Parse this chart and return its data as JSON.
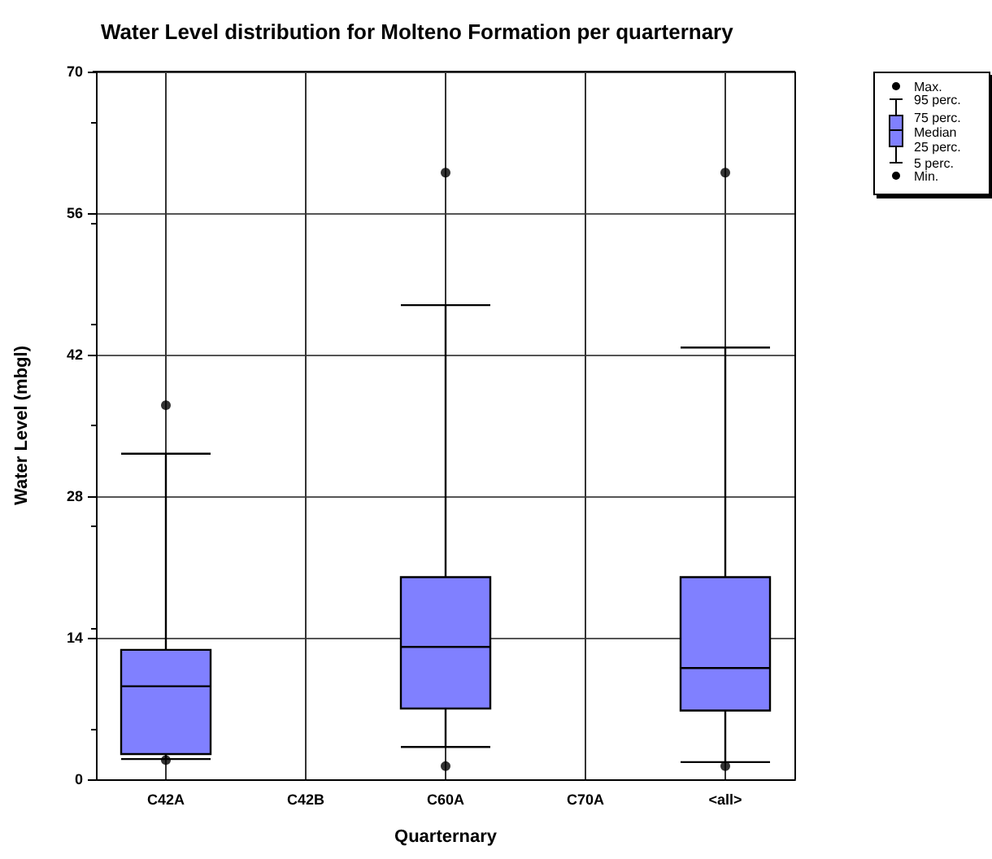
{
  "chart_data": {
    "type": "box",
    "title": "Water Level distribution for Molteno Formation per quarternary",
    "xlabel": "Quarternary",
    "ylabel": "Water Level (mbgl)",
    "categories": [
      "C42A",
      "C42B",
      "C60A",
      "C70A",
      "<all>"
    ],
    "boxes": [
      {
        "low": 2.0,
        "q1": 2.5,
        "median": 9.2,
        "q3": 12.8,
        "high": 32.2,
        "outliers": [
          1.9,
          37
        ]
      },
      null,
      {
        "low": 3.2,
        "q1": 7.0,
        "median": 13.1,
        "q3": 20.0,
        "high": 46.9,
        "outliers": [
          1.3,
          60
        ]
      },
      null,
      {
        "low": 1.7,
        "q1": 6.8,
        "median": 11.0,
        "q3": 20.0,
        "high": 42.7,
        "outliers": [
          1.3,
          60
        ]
      }
    ],
    "color": "#8080ff",
    "ylim": [
      0,
      70
    ],
    "yticks": [
      0,
      14,
      28,
      42,
      56,
      70
    ],
    "grid": true,
    "annotations": [
      "Max.",
      "95 perc.",
      "75 perc.",
      "Median",
      "25 perc.",
      "5 perc.",
      "Min."
    ]
  }
}
